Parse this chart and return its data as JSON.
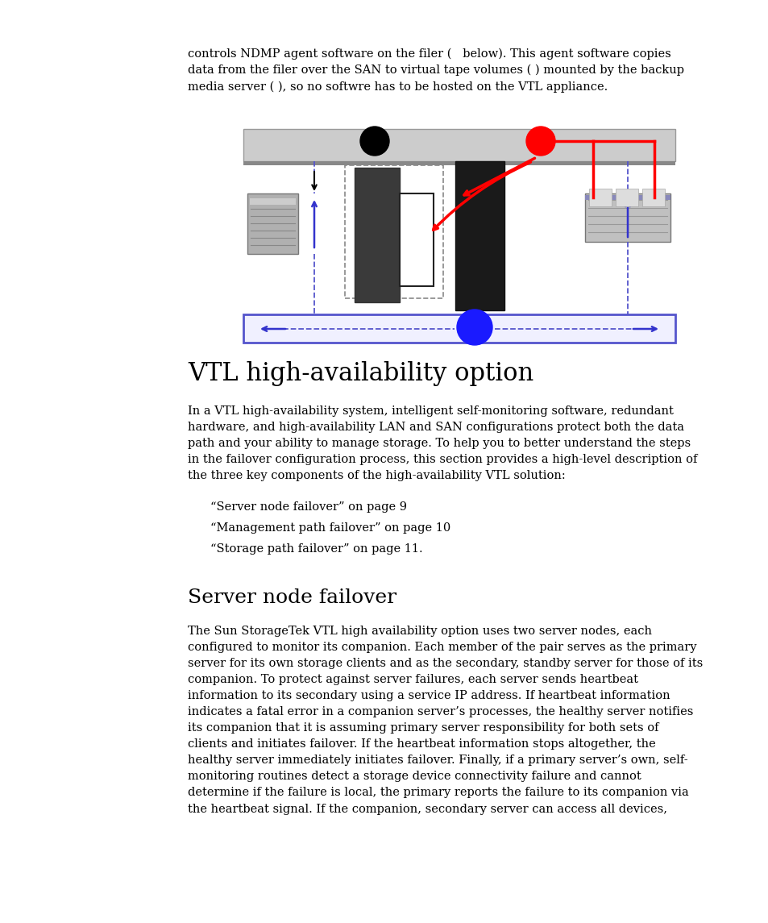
{
  "bg_color": "#ffffff",
  "intro_text": "controls NDMP agent software on the filer (   below). This agent software copies\ndata from the filer over the SAN to virtual tape volumes ( ) mounted by the backup\nmedia server ( ), so no softwre has to be hosted on the VTL appliance.",
  "section1_title": "VTL high-availability option",
  "section1_body": "In a VTL high-availability system, intelligent self-monitoring software, redundant\nhardware, and high-availability LAN and SAN configurations protect both the data\npath and your ability to manage storage. To help you to better understand the steps\nin the failover configuration process, this section provides a high-level description of\nthe three key components of the high-availability VTL solution:",
  "bullets": [
    "“Server node failover” on page 9",
    "“Management path failover” on page 10",
    "“Storage path failover” on page 11."
  ],
  "section2_title": "Server node failover",
  "section2_body": "The Sun StorageTek VTL high availability option uses two server nodes, each\nconfigured to monitor its companion. Each member of the pair serves as the primary\nserver for its own storage clients and as the secondary, standby server for those of its\ncompanion. To protect against server failures, each server sends heartbeat\ninformation to its secondary using a service IP address. If heartbeat information\nindicates a fatal error in a companion server’s processes, the healthy server notifies\nits companion that it is assuming primary server responsibility for both sets of\nclients and initiates failover. If the heartbeat information stops altogether, the\nhealthy server immediately initiates failover. Finally, if a primary server’s own, self-\nmonitoring routines detect a storage device connectivity failure and cannot\ndetermine if the failure is local, the primary reports the failure to its companion via\nthe heartbeat signal. If the companion, secondary server can access all devices,"
}
